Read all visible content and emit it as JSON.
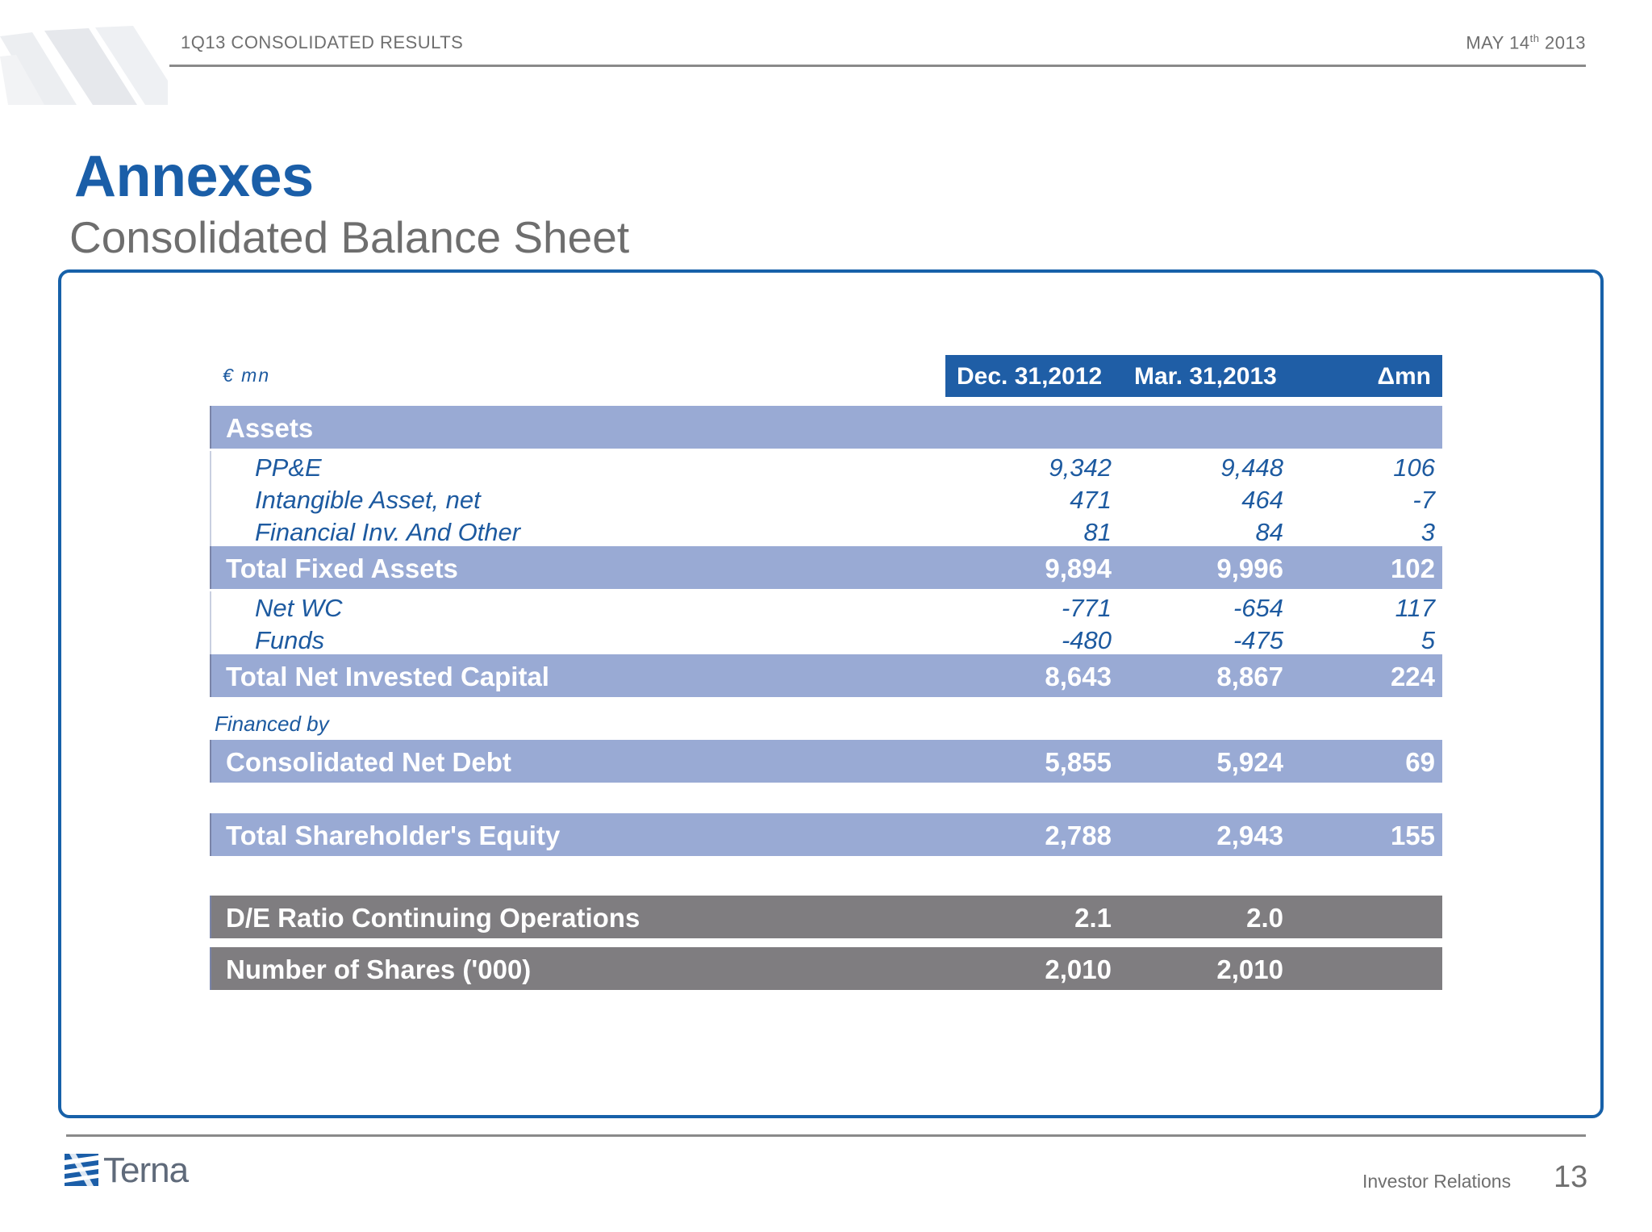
{
  "header": {
    "section": "1Q13 CONSOLIDATED RESULTS",
    "date_prefix": "MAY 14",
    "date_sup": "th",
    "date_year": "2013"
  },
  "title": "Annexes",
  "subtitle": "Consolidated Balance Sheet",
  "table": {
    "unit": "€ mn",
    "columns": [
      "Dec. 31,2012",
      "Mar. 31,2013",
      "Δmn"
    ],
    "assets_label": "Assets",
    "assets_items": [
      {
        "label": "PP&E",
        "values": [
          "9,342",
          "9,448",
          "106"
        ]
      },
      {
        "label": "Intangible Asset, net",
        "values": [
          "471",
          "464",
          "-7"
        ]
      },
      {
        "label": "Financial Inv. And Other",
        "values": [
          "81",
          "84",
          "3"
        ]
      }
    ],
    "total_fixed_assets": {
      "label": "Total Fixed Assets",
      "values": [
        "9,894",
        "9,996",
        "102"
      ]
    },
    "wc_items": [
      {
        "label": "Net WC",
        "values": [
          "-771",
          "-654",
          "117"
        ]
      },
      {
        "label": "Funds",
        "values": [
          "-480",
          "-475",
          "5"
        ]
      }
    ],
    "total_nic": {
      "label": "Total Net Invested Capital",
      "values": [
        "8,643",
        "8,867",
        "224"
      ]
    },
    "financed_by": "Financed by",
    "net_debt": {
      "label": "Consolidated Net Debt",
      "values": [
        "5,855",
        "5,924",
        "69"
      ]
    },
    "equity": {
      "label": "Total Shareholder's Equity",
      "values": [
        "2,788",
        "2,943",
        "155"
      ]
    },
    "de_ratio": {
      "label": "D/E Ratio Continuing Operations",
      "values": [
        "2.1",
        "2.0"
      ]
    },
    "shares": {
      "label": "Number of Shares ('000)",
      "values": [
        "2,010",
        "2,010"
      ]
    }
  },
  "footer": {
    "logo_text": "Terna",
    "department": "Investor Relations",
    "page_number": "13"
  },
  "colors": {
    "title_blue": "#1a5ea8",
    "header_blue": "#1f5ea6",
    "band_blue": "#99aad4",
    "band_grey": "#7f7d80",
    "frame_blue": "#1761a9"
  }
}
